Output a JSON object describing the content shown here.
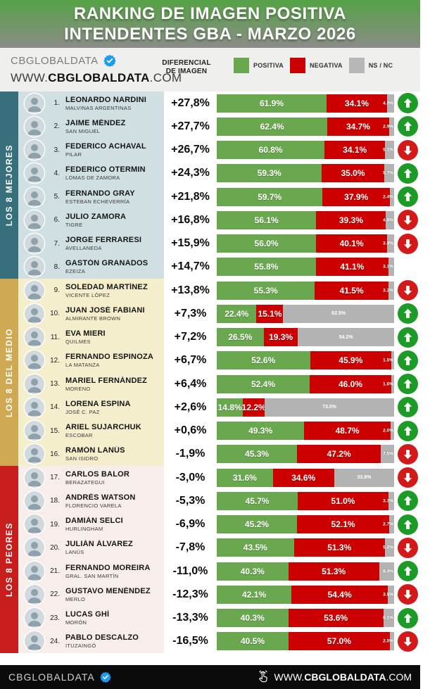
{
  "header": {
    "title_line1": "RANKING DE IMAGEN POSITIVA",
    "title_line2": "INTENDENTES GBA - MARZO 2026"
  },
  "subheader": {
    "brand": "CBGLOBALDATA",
    "website_prefix": "WWW.",
    "website_bold": "CBGLOBALDATA",
    "website_suffix": ".COM",
    "column_header_line1": "DIFERENCIAL",
    "column_header_line2": "DE IMAGEN",
    "legend": [
      {
        "label": "POSITIVA",
        "color": "#6aa84f"
      },
      {
        "label": "NEGATIVA",
        "color": "#cc0000"
      },
      {
        "label": "NS / NC",
        "color": "#b7b7b7"
      }
    ]
  },
  "sections": [
    {
      "label": "LOS 8 MEJORES",
      "band_color": "#37707c",
      "row_bg": "#cfdfe2"
    },
    {
      "label": "LOS 8 DEL MEDIO",
      "band_color": "#cfa952",
      "row_bg": "#f4eecd"
    },
    {
      "label": "LOS 8 PEORES",
      "band_color": "#c81d1d",
      "row_bg": "#f7edea"
    }
  ],
  "rows": [
    {
      "rank": 1,
      "name": "LEONARDO NARDINI",
      "district": "MALVINAS ARGENTINAS",
      "diff": "+27,8%",
      "pos": 61.9,
      "neg": 34.1,
      "ns": 4.0,
      "trend": "up"
    },
    {
      "rank": 2,
      "name": "JAIME MÉNDEZ",
      "district": "SAN MIGUEL",
      "diff": "+27,7%",
      "pos": 62.4,
      "neg": 34.7,
      "ns": 2.9,
      "trend": "up"
    },
    {
      "rank": 3,
      "name": "FEDERICO ACHAVAL",
      "district": "PILAR",
      "diff": "+26,7%",
      "pos": 60.8,
      "neg": 34.1,
      "ns": 5.1,
      "trend": "down"
    },
    {
      "rank": 4,
      "name": "FEDERICO OTERMIN",
      "district": "LOMAS DE ZAMORA",
      "diff": "+24,3%",
      "pos": 59.3,
      "neg": 35.0,
      "ns": 5.7,
      "trend": "up"
    },
    {
      "rank": 5,
      "name": "FERNANDO GRAY",
      "district": "ESTEBAN ECHEVERRÍA",
      "diff": "+21,8%",
      "pos": 59.7,
      "neg": 37.9,
      "ns": 2.4,
      "trend": "up"
    },
    {
      "rank": 6,
      "name": "JULIO ZAMORA",
      "district": "TIGRE",
      "diff": "+16,8%",
      "pos": 56.1,
      "neg": 39.3,
      "ns": 4.6,
      "trend": "down"
    },
    {
      "rank": 7,
      "name": "JORGE FERRARESI",
      "district": "AVELLANEDA",
      "diff": "+15,9%",
      "pos": 56.0,
      "neg": 40.1,
      "ns": 3.9,
      "trend": "down"
    },
    {
      "rank": 8,
      "name": "GASTÓN GRANADOS",
      "district": "EZEIZA",
      "diff": "+14,7%",
      "pos": 55.8,
      "neg": 41.1,
      "ns": 3.1,
      "trend": "none"
    },
    {
      "rank": 9,
      "name": "SOLEDAD MARTÍNEZ",
      "district": "VICENTE LÓPEZ",
      "diff": "+13,8%",
      "pos": 55.3,
      "neg": 41.5,
      "ns": 3.2,
      "trend": "down"
    },
    {
      "rank": 10,
      "name": "JUAN JOSÉ FABIANI",
      "district": "ALMIRANTE BROWN",
      "diff": "+7,3%",
      "pos": 22.4,
      "neg": 15.1,
      "ns": 62.5,
      "trend": "up"
    },
    {
      "rank": 11,
      "name": "EVA MIERI",
      "district": "QUILMES",
      "diff": "+7,2%",
      "pos": 26.5,
      "neg": 19.3,
      "ns": 54.2,
      "trend": "up"
    },
    {
      "rank": 12,
      "name": "FERNANDO ESPINOZA",
      "district": "LA MATANZA",
      "diff": "+6,7%",
      "pos": 52.6,
      "neg": 45.9,
      "ns": 1.5,
      "trend": "up"
    },
    {
      "rank": 13,
      "name": "MARIEL FERNÁNDEZ",
      "district": "MORENO",
      "diff": "+6,4%",
      "pos": 52.4,
      "neg": 46.0,
      "ns": 1.6,
      "trend": "up"
    },
    {
      "rank": 14,
      "name": "LORENA ESPINA",
      "district": "JOSÉ C. PAZ",
      "diff": "+2,6%",
      "pos": 14.8,
      "neg": 12.2,
      "ns": 73.0,
      "trend": "up"
    },
    {
      "rank": 15,
      "name": "ARIEL SUJARCHUK",
      "district": "ESCOBAR",
      "diff": "+0,6%",
      "pos": 49.3,
      "neg": 48.7,
      "ns": 2.0,
      "trend": "up"
    },
    {
      "rank": 16,
      "name": "RAMÓN LANÚS",
      "district": "SAN ISIDRO",
      "diff": "-1,9%",
      "pos": 45.3,
      "neg": 47.2,
      "ns": 7.5,
      "trend": "down"
    },
    {
      "rank": 17,
      "name": "CARLOS BALOR",
      "district": "BERAZATEGUI",
      "diff": "-3,0%",
      "pos": 31.6,
      "neg": 34.6,
      "ns": 33.8,
      "trend": "down"
    },
    {
      "rank": 18,
      "name": "ANDRÉS WATSON",
      "district": "FLORENCIO VARELA",
      "diff": "-5,3%",
      "pos": 45.7,
      "neg": 51.0,
      "ns": 3.3,
      "trend": "up"
    },
    {
      "rank": 19,
      "name": "DAMIÁN SELCI",
      "district": "HURLINGHAM",
      "diff": "-6,9%",
      "pos": 45.2,
      "neg": 52.1,
      "ns": 2.7,
      "trend": "up"
    },
    {
      "rank": 20,
      "name": "JULIÁN ÁLVAREZ",
      "district": "LANÚS",
      "diff": "-7,8%",
      "pos": 43.5,
      "neg": 51.3,
      "ns": 5.2,
      "trend": "down"
    },
    {
      "rank": 21,
      "name": "FERNANDO MOREIRA",
      "district": "GRAL. SAN MARTÍN",
      "diff": "-11,0%",
      "pos": 40.3,
      "neg": 51.3,
      "ns": 8.4,
      "trend": "up"
    },
    {
      "rank": 22,
      "name": "GUSTAVO MENÉNDEZ",
      "district": "MERLO",
      "diff": "-12,3%",
      "pos": 42.1,
      "neg": 54.4,
      "ns": 3.5,
      "trend": "down"
    },
    {
      "rank": 23,
      "name": "LUCAS GHÍ",
      "district": "MORÓN",
      "diff": "-13,3%",
      "pos": 40.3,
      "neg": 53.6,
      "ns": 6.1,
      "trend": "up"
    },
    {
      "rank": 24,
      "name": "PABLO DESCALZO",
      "district": "ITUZAINGÓ",
      "diff": "-16,5%",
      "pos": 40.5,
      "neg": 57.0,
      "ns": 2.5,
      "trend": "down"
    }
  ],
  "footer": {
    "brand": "CBGLOBALDATA",
    "website_prefix": "WWW.",
    "website_bold": "CBGLOBALDATA",
    "website_suffix": ".COM"
  },
  "colors": {
    "positive": "#6aa84f",
    "negative": "#cc0000",
    "nsnc": "#b3b3b3",
    "arrow_up": "#1d9b27",
    "arrow_down": "#d31a1a",
    "header_gradient_top": "#55a246",
    "header_gradient_bottom": "#8b8c87",
    "verified_badge": "#1d9bf0"
  },
  "chart_data": {
    "type": "bar",
    "subtype": "horizontal-stacked",
    "title": "RANKING DE IMAGEN POSITIVA INTENDENTES GBA - MARZO 2026",
    "categories": [
      "LEONARDO NARDINI",
      "JAIME MÉNDEZ",
      "FEDERICO ACHAVAL",
      "FEDERICO OTERMIN",
      "FERNANDO GRAY",
      "JULIO ZAMORA",
      "JORGE FERRARESI",
      "GASTÓN GRANADOS",
      "SOLEDAD MARTÍNEZ",
      "JUAN JOSÉ FABIANI",
      "EVA MIERI",
      "FERNANDO ESPINOZA",
      "MARIEL FERNÁNDEZ",
      "LORENA ESPINA",
      "ARIEL SUJARCHUK",
      "RAMÓN LANÚS",
      "CARLOS BALOR",
      "ANDRÉS WATSON",
      "DAMIÁN SELCI",
      "JULIÁN ÁLVAREZ",
      "FERNANDO MOREIRA",
      "GUSTAVO MENÉNDEZ",
      "LUCAS GHÍ",
      "PABLO DESCALZO"
    ],
    "series": [
      {
        "name": "POSITIVA",
        "values": [
          61.9,
          62.4,
          60.8,
          59.3,
          59.7,
          56.1,
          56.0,
          55.8,
          55.3,
          22.4,
          26.5,
          52.6,
          52.4,
          14.8,
          49.3,
          45.3,
          31.6,
          45.7,
          45.2,
          43.5,
          40.3,
          42.1,
          40.3,
          40.5
        ]
      },
      {
        "name": "NEGATIVA",
        "values": [
          34.1,
          34.7,
          34.1,
          35.0,
          37.9,
          39.3,
          40.1,
          41.1,
          41.5,
          15.1,
          19.3,
          45.9,
          46.0,
          12.2,
          48.7,
          47.2,
          34.6,
          51.0,
          52.1,
          51.3,
          51.3,
          54.4,
          53.6,
          57.0
        ]
      },
      {
        "name": "NS / NC",
        "values": [
          4.0,
          2.9,
          5.1,
          5.7,
          2.4,
          4.6,
          3.9,
          3.1,
          3.2,
          62.5,
          54.2,
          1.5,
          1.6,
          73.0,
          2.0,
          7.5,
          33.8,
          3.3,
          2.7,
          5.2,
          8.4,
          3.5,
          6.1,
          2.5
        ]
      }
    ],
    "differential_de_imagen": [
      "+27,8%",
      "+27,7%",
      "+26,7%",
      "+24,3%",
      "+21,8%",
      "+16,8%",
      "+15,9%",
      "+14,7%",
      "+13,8%",
      "+7,3%",
      "+7,2%",
      "+6,7%",
      "+6,4%",
      "+2,6%",
      "+0,6%",
      "-1,9%",
      "-3,0%",
      "-5,3%",
      "-6,9%",
      "-7,8%",
      "-11,0%",
      "-12,3%",
      "-13,3%",
      "-16,5%"
    ],
    "trend_arrows": [
      "up",
      "up",
      "down",
      "up",
      "up",
      "down",
      "down",
      "none",
      "down",
      "up",
      "up",
      "up",
      "up",
      "up",
      "up",
      "down",
      "down",
      "up",
      "up",
      "down",
      "up",
      "down",
      "up",
      "down"
    ],
    "groups": [
      {
        "label": "LOS 8 MEJORES",
        "ranks": "1-8"
      },
      {
        "label": "LOS 8 DEL MEDIO",
        "ranks": "9-16"
      },
      {
        "label": "LOS 8 PEORES",
        "ranks": "17-24"
      }
    ],
    "xlim": [
      0,
      100
    ],
    "legend_position": "top",
    "grid": false
  }
}
